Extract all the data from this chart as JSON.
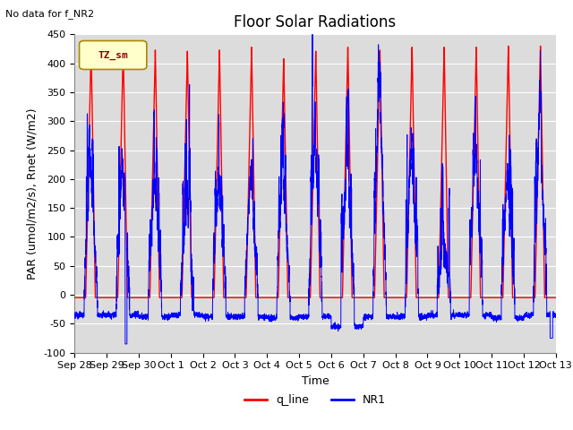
{
  "title": "Floor Solar Radiations",
  "top_left_text": "No data for f_NR2",
  "legend_box_label": "TZ_sm",
  "xlabel": "Time",
  "ylabel": "PAR (umol/m2/s), Rnet (W/m2)",
  "ylim": [
    -100,
    450
  ],
  "yticks": [
    -100,
    -50,
    0,
    50,
    100,
    150,
    200,
    250,
    300,
    350,
    400,
    450
  ],
  "xtick_labels": [
    "Sep 28",
    "Sep 29",
    "Sep 30",
    "Oct 1",
    "Oct 2",
    "Oct 3",
    "Oct 4",
    "Oct 5",
    "Oct 6",
    "Oct 7",
    "Oct 8",
    "Oct 9",
    "Oct 10",
    "Oct 11",
    "Oct 12",
    "Oct 13"
  ],
  "line1_color": "#FF0000",
  "line1_label": "q_line",
  "line2_color": "#0000FF",
  "line2_label": "NR1",
  "background_color": "#DCDCDC",
  "grid_color": "#FFFFFF",
  "title_fontsize": 12,
  "label_fontsize": 9,
  "tick_fontsize": 8,
  "legend_box_facecolor": "#FFFFCC",
  "legend_box_edgecolor": "#AA8800"
}
